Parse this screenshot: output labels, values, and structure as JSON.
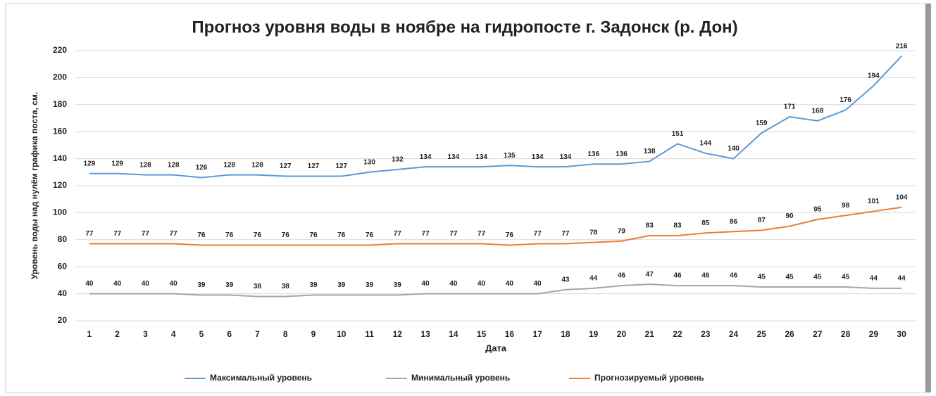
{
  "chart_data": {
    "type": "line",
    "title": "Прогноз уровня воды в ноябре на гидропосте г. Задонск (р. Дон)",
    "x_label": "Дата",
    "y_label": "Уровень воды над нулём графика поста, см.",
    "categories": [
      "1",
      "2",
      "3",
      "4",
      "5",
      "6",
      "7",
      "8",
      "9",
      "10",
      "11",
      "12",
      "13",
      "14",
      "15",
      "16",
      "17",
      "18",
      "19",
      "20",
      "21",
      "22",
      "23",
      "24",
      "25",
      "26",
      "27",
      "28",
      "29",
      "30"
    ],
    "series": [
      {
        "name": "Максимальный уровень",
        "color": "#5b9bd5",
        "values": [
          129,
          129,
          128,
          128,
          126,
          128,
          128,
          127,
          127,
          127,
          130,
          132,
          134,
          134,
          134,
          135,
          134,
          134,
          136,
          136,
          138,
          151,
          144,
          140,
          159,
          171,
          168,
          176,
          194,
          216
        ]
      },
      {
        "name": "Минимальный уровень",
        "color": "#a5a5a5",
        "values": [
          40,
          40,
          40,
          40,
          39,
          39,
          38,
          38,
          39,
          39,
          39,
          39,
          40,
          40,
          40,
          40,
          40,
          43,
          44,
          46,
          47,
          46,
          46,
          46,
          45,
          45,
          45,
          45,
          44,
          44
        ]
      },
      {
        "name": "Прогнозируемый уровень",
        "color": "#ed7d31",
        "values": [
          77,
          77,
          77,
          77,
          76,
          76,
          76,
          76,
          76,
          76,
          76,
          77,
          77,
          77,
          77,
          76,
          77,
          77,
          78,
          79,
          83,
          83,
          85,
          86,
          87,
          90,
          95,
          98,
          101,
          104
        ]
      }
    ],
    "ylim": [
      20,
      220
    ],
    "yticks": [
      20,
      40,
      60,
      80,
      100,
      120,
      140,
      160,
      180,
      200,
      220
    ],
    "grid": true,
    "legend": "bottom"
  }
}
